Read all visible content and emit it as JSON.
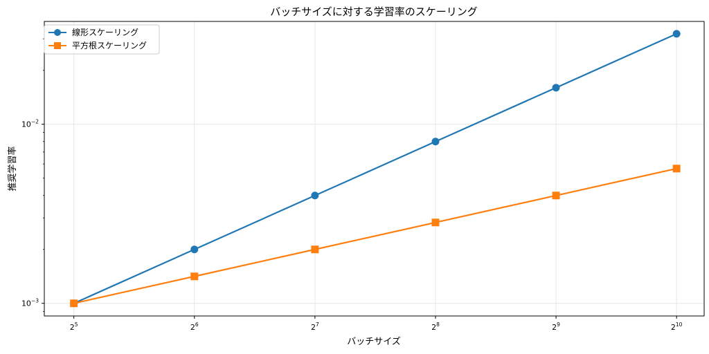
{
  "chart_data": {
    "type": "line",
    "title": "バッチサイズに対する学習率のスケーリング",
    "xlabel": "バッチサイズ",
    "ylabel": "推奨学習率",
    "x_scale": "log2",
    "y_scale": "log10",
    "x": [
      32,
      64,
      128,
      256,
      512,
      1024
    ],
    "x_tick_labels": [
      {
        "base": "2",
        "exp": "5"
      },
      {
        "base": "2",
        "exp": "6"
      },
      {
        "base": "2",
        "exp": "7"
      },
      {
        "base": "2",
        "exp": "8"
      },
      {
        "base": "2",
        "exp": "9"
      },
      {
        "base": "2",
        "exp": "10"
      }
    ],
    "y_tick_labels": [
      {
        "value": 0.001,
        "base": "10",
        "exp": "−3"
      },
      {
        "value": 0.01,
        "base": "10",
        "exp": "−2"
      }
    ],
    "xlim": [
      27,
      1200
    ],
    "ylim": [
      0.00085,
      0.0375
    ],
    "grid": true,
    "legend_position": "top-left",
    "series": [
      {
        "name": "線形スケーリング",
        "color": "#1f77b4",
        "marker": "circle",
        "values": [
          0.001,
          0.002,
          0.004,
          0.008,
          0.016,
          0.032
        ]
      },
      {
        "name": "平方根スケーリング",
        "color": "#ff7f0e",
        "marker": "square",
        "values": [
          0.001,
          0.001414,
          0.002,
          0.002828,
          0.004,
          0.005657
        ]
      }
    ]
  }
}
